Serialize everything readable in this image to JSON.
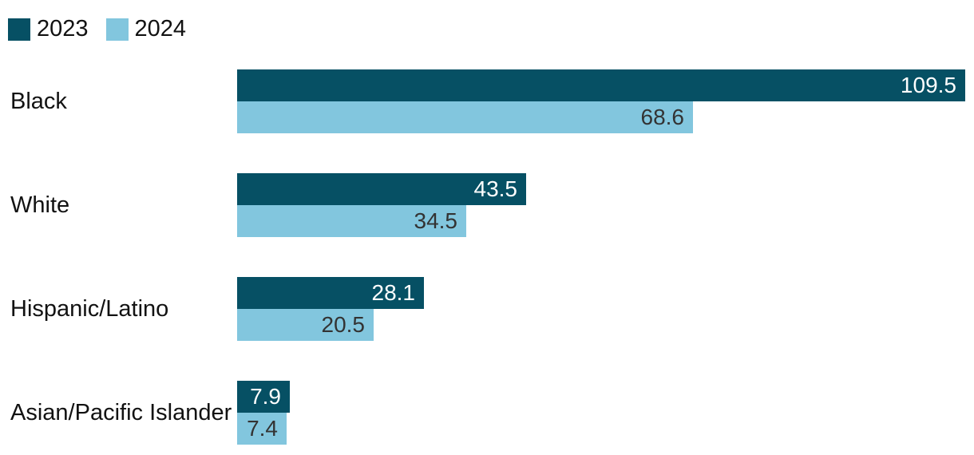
{
  "chart_data": {
    "type": "bar",
    "orientation": "horizontal",
    "categories": [
      "Black",
      "White",
      "Hispanic/Latino",
      "Asian/Pacific Islander"
    ],
    "series": [
      {
        "name": "2023",
        "color": "#065064",
        "label_color": "#ffffff",
        "values": [
          109.5,
          43.5,
          28.1,
          7.9
        ]
      },
      {
        "name": "2024",
        "color": "#82c6de",
        "label_color": "#333333",
        "values": [
          68.6,
          34.5,
          20.5,
          7.4
        ]
      }
    ],
    "value_labels": true,
    "xlim": [
      0,
      110.8
    ],
    "grid": false,
    "legend_position": "top-left",
    "background": "#ffffff"
  }
}
